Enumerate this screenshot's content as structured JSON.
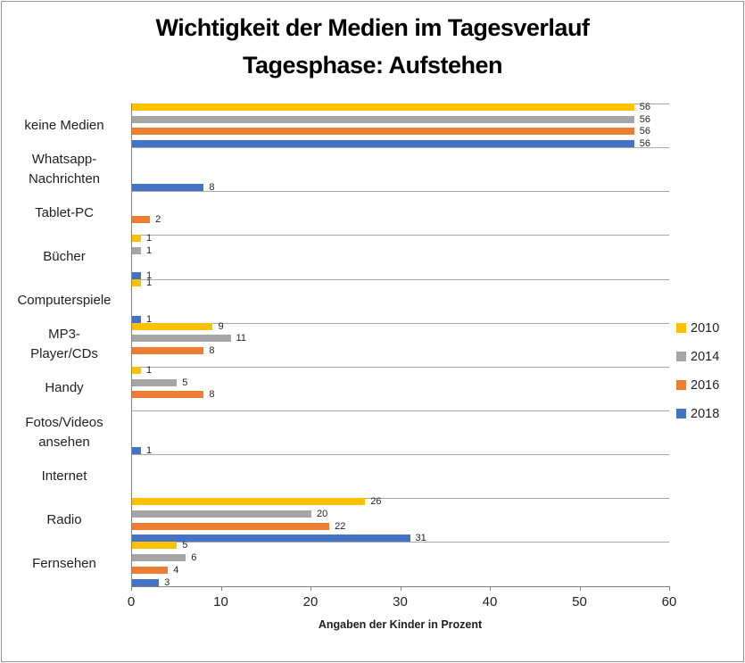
{
  "chart_data": {
    "type": "bar",
    "orientation": "horizontal",
    "title": "Wichtigkeit der Medien im Tagesverlauf Tagesphase: Aufstehen",
    "title_lines": [
      "Wichtigkeit der Medien im Tagesverlauf",
      "Tagesphase: Aufstehen"
    ],
    "xlabel": "Angaben der Kinder in Prozent",
    "xlim": [
      0,
      60
    ],
    "xticks": [
      0,
      10,
      20,
      30,
      40,
      50,
      60
    ],
    "grid": "horizontal-category-boundaries",
    "legend_position": "right",
    "legend_entries": [
      "2010",
      "2014",
      "2016",
      "2018"
    ],
    "categories": [
      "keine Medien",
      "Whatsapp-Nachrichten",
      "Tablet-PC",
      "Bücher",
      "Computerspiele",
      "MP3-Player/CDs",
      "Handy",
      "Fotos/Videos ansehen",
      "Internet",
      "Radio",
      "Fernsehen"
    ],
    "category_label_lines": [
      [
        "keine Medien"
      ],
      [
        "Whatsapp-",
        "Nachrichten"
      ],
      [
        "Tablet-PC"
      ],
      [
        "Bücher"
      ],
      [
        "Computerspiele"
      ],
      [
        "MP3-",
        "Player/CDs"
      ],
      [
        "Handy"
      ],
      [
        "Fotos/Videos",
        "ansehen"
      ],
      [
        "Internet"
      ],
      [
        "Radio"
      ],
      [
        "Fernsehen"
      ]
    ],
    "series": [
      {
        "name": "2010",
        "color": "#FFC000",
        "values": [
          56,
          0,
          0,
          1,
          1,
          9,
          1,
          0,
          0,
          26,
          5
        ]
      },
      {
        "name": "2014",
        "color": "#A5A5A5",
        "values": [
          56,
          0,
          0,
          1,
          0,
          11,
          5,
          0,
          0,
          20,
          6
        ]
      },
      {
        "name": "2016",
        "color": "#ED7D31",
        "values": [
          56,
          0,
          2,
          0,
          0,
          8,
          8,
          0,
          0,
          22,
          4
        ]
      },
      {
        "name": "2018",
        "color": "#4472C4",
        "values": [
          56,
          8,
          0,
          1,
          1,
          0,
          0,
          1,
          0,
          31,
          3
        ]
      }
    ],
    "value_labels": "shown for all non-zero bars",
    "colors": {
      "gridline": "#A6A6A6",
      "axis": "#808080",
      "text": "#1F1F1F",
      "title": "#000000"
    }
  }
}
